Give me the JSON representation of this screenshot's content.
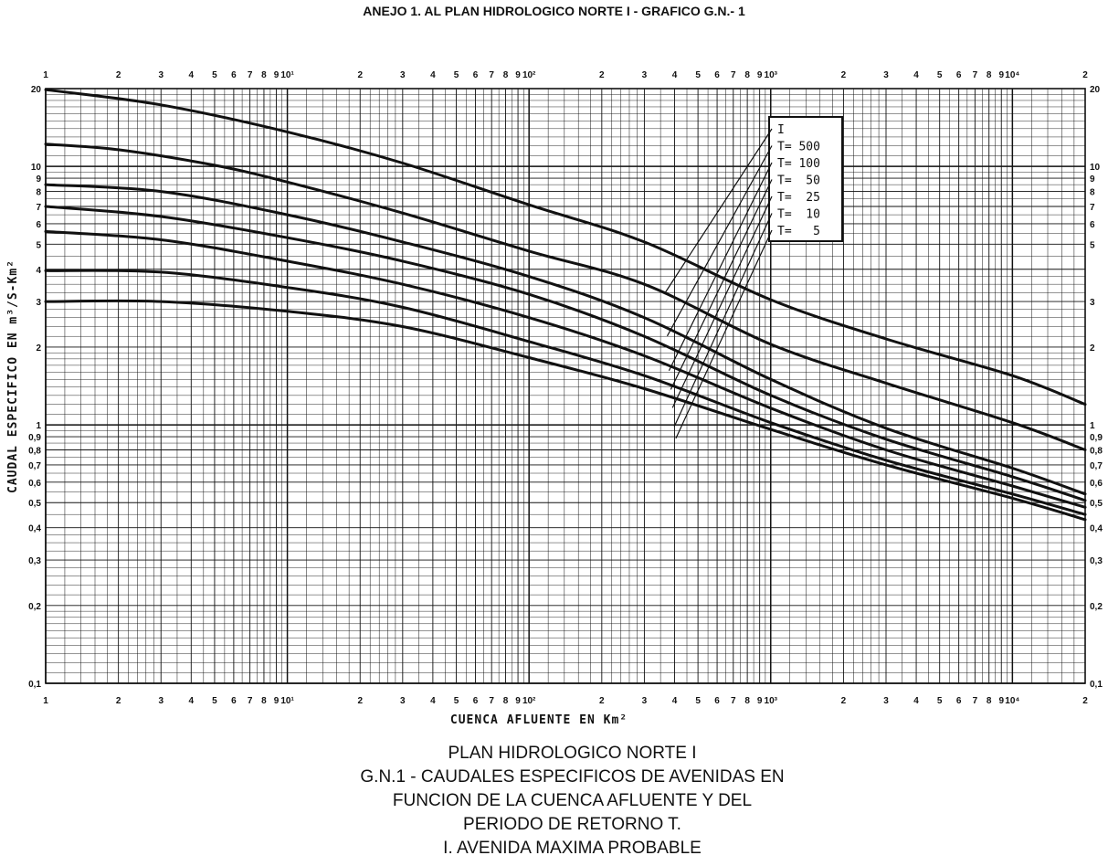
{
  "header": {
    "title": "ANEJO 1. AL PLAN HIDROLOGICO NORTE I - GRAFICO G.N.- 1"
  },
  "caption": {
    "lines": [
      "PLAN HIDROLOGICO NORTE I",
      "G.N.1 - CAUDALES ESPECIFICOS DE AVENIDAS EN",
      "FUNCION DE LA CUENCA AFLUENTE Y DEL",
      "PERIODO DE RETORNO T.",
      "I. AVENIDA MAXIMA PROBABLE"
    ]
  },
  "chart_data": {
    "type": "line",
    "xscale": "log",
    "yscale": "log",
    "xlim": [
      1,
      20000
    ],
    "ylim": [
      0.1,
      20
    ],
    "grid": true,
    "xlabel": "CUENCA  AFLUENTE  EN  Km²",
    "ylabel": "CAUDAL  ESPECIFICO  EN  m³/S-Km²",
    "x_tick_labels": [
      {
        "v": 1,
        "t": "1"
      },
      {
        "v": 2,
        "t": "2"
      },
      {
        "v": 3,
        "t": "3"
      },
      {
        "v": 4,
        "t": "4"
      },
      {
        "v": 5,
        "t": "5"
      },
      {
        "v": 6,
        "t": "6"
      },
      {
        "v": 7,
        "t": "7"
      },
      {
        "v": 8,
        "t": "8"
      },
      {
        "v": 9,
        "t": "9"
      },
      {
        "v": 10,
        "t": "10¹"
      },
      {
        "v": 20,
        "t": "2"
      },
      {
        "v": 30,
        "t": "3"
      },
      {
        "v": 40,
        "t": "4"
      },
      {
        "v": 50,
        "t": "5"
      },
      {
        "v": 60,
        "t": "6"
      },
      {
        "v": 70,
        "t": "7"
      },
      {
        "v": 80,
        "t": "8"
      },
      {
        "v": 90,
        "t": "9"
      },
      {
        "v": 100,
        "t": "10²"
      },
      {
        "v": 200,
        "t": "2"
      },
      {
        "v": 300,
        "t": "3"
      },
      {
        "v": 400,
        "t": "4"
      },
      {
        "v": 500,
        "t": "5"
      },
      {
        "v": 600,
        "t": "6"
      },
      {
        "v": 700,
        "t": "7"
      },
      {
        "v": 800,
        "t": "8"
      },
      {
        "v": 900,
        "t": "9"
      },
      {
        "v": 1000,
        "t": "10³"
      },
      {
        "v": 2000,
        "t": "2"
      },
      {
        "v": 3000,
        "t": "3"
      },
      {
        "v": 4000,
        "t": "4"
      },
      {
        "v": 5000,
        "t": "5"
      },
      {
        "v": 6000,
        "t": "6"
      },
      {
        "v": 7000,
        "t": "7"
      },
      {
        "v": 8000,
        "t": "8"
      },
      {
        "v": 9000,
        "t": "9"
      },
      {
        "v": 10000,
        "t": "10⁴"
      },
      {
        "v": 20000,
        "t": "2"
      }
    ],
    "y_tick_labels_left": [
      {
        "v": 20,
        "t": "20"
      },
      {
        "v": 10,
        "t": "10"
      },
      {
        "v": 9,
        "t": "9"
      },
      {
        "v": 8,
        "t": "8"
      },
      {
        "v": 7,
        "t": "7"
      },
      {
        "v": 6,
        "t": "6"
      },
      {
        "v": 5,
        "t": "5"
      },
      {
        "v": 4,
        "t": "4"
      },
      {
        "v": 3,
        "t": "3"
      },
      {
        "v": 2,
        "t": "2"
      },
      {
        "v": 1,
        "t": "1"
      },
      {
        "v": 0.9,
        "t": "0,9"
      },
      {
        "v": 0.8,
        "t": "0,8"
      },
      {
        "v": 0.7,
        "t": "0,7"
      },
      {
        "v": 0.6,
        "t": "0,6"
      },
      {
        "v": 0.5,
        "t": "0,5"
      },
      {
        "v": 0.4,
        "t": "0,4"
      },
      {
        "v": 0.3,
        "t": "0,3"
      },
      {
        "v": 0.2,
        "t": "0,2"
      },
      {
        "v": 0.1,
        "t": "0,1"
      }
    ],
    "y_tick_labels_right": [
      {
        "v": 20,
        "t": "20"
      },
      {
        "v": 10,
        "t": "10"
      },
      {
        "v": 9,
        "t": "9"
      },
      {
        "v": 8,
        "t": "8"
      },
      {
        "v": 7,
        "t": "7"
      },
      {
        "v": 6,
        "t": "6"
      },
      {
        "v": 5,
        "t": "5"
      },
      {
        "v": 3,
        "t": "3"
      },
      {
        "v": 2,
        "t": "2"
      },
      {
        "v": 1,
        "t": "1"
      },
      {
        "v": 0.9,
        "t": "0,9"
      },
      {
        "v": 0.8,
        "t": "0,8"
      },
      {
        "v": 0.7,
        "t": "0,7"
      },
      {
        "v": 0.6,
        "t": "0,6"
      },
      {
        "v": 0.5,
        "t": "0,5"
      },
      {
        "v": 0.4,
        "t": "0,4"
      },
      {
        "v": 0.3,
        "t": "0,3"
      },
      {
        "v": 0.2,
        "t": "0,2"
      },
      {
        "v": 0.1,
        "t": "0,1"
      }
    ],
    "series": [
      {
        "name": "I",
        "points": [
          [
            1,
            19.8
          ],
          [
            3,
            17.3
          ],
          [
            10,
            13.6
          ],
          [
            30,
            10.3
          ],
          [
            100,
            7.1
          ],
          [
            300,
            5.1
          ],
          [
            1000,
            3.05
          ],
          [
            3000,
            2.15
          ],
          [
            10000,
            1.55
          ],
          [
            20000,
            1.2
          ]
        ]
      },
      {
        "name": "T= 500",
        "points": [
          [
            1,
            12.2
          ],
          [
            2,
            11.6
          ],
          [
            5,
            10.1
          ],
          [
            10,
            8.7
          ],
          [
            30,
            6.6
          ],
          [
            100,
            4.7
          ],
          [
            300,
            3.5
          ],
          [
            1000,
            2.05
          ],
          [
            3000,
            1.45
          ],
          [
            10000,
            1.02
          ],
          [
            20000,
            0.8
          ]
        ]
      },
      {
        "name": "T= 100",
        "points": [
          [
            1,
            8.5
          ],
          [
            3,
            8.0
          ],
          [
            10,
            6.5
          ],
          [
            30,
            5.1
          ],
          [
            100,
            3.75
          ],
          [
            300,
            2.6
          ],
          [
            1000,
            1.5
          ],
          [
            3000,
            0.97
          ],
          [
            10000,
            0.68
          ],
          [
            20000,
            0.54
          ]
        ]
      },
      {
        "name": "T= 50",
        "points": [
          [
            1,
            7.0
          ],
          [
            3,
            6.4
          ],
          [
            10,
            5.3
          ],
          [
            30,
            4.3
          ],
          [
            100,
            3.2
          ],
          [
            300,
            2.2
          ],
          [
            1000,
            1.3
          ],
          [
            3000,
            0.88
          ],
          [
            10000,
            0.63
          ],
          [
            20000,
            0.51
          ]
        ]
      },
      {
        "name": "T= 25",
        "points": [
          [
            1,
            5.6
          ],
          [
            3,
            5.2
          ],
          [
            10,
            4.3
          ],
          [
            30,
            3.5
          ],
          [
            100,
            2.6
          ],
          [
            300,
            1.85
          ],
          [
            1000,
            1.16
          ],
          [
            3000,
            0.8
          ],
          [
            10000,
            0.58
          ],
          [
            20000,
            0.48
          ]
        ]
      },
      {
        "name": "T= 10",
        "points": [
          [
            1,
            3.95
          ],
          [
            3,
            3.9
          ],
          [
            10,
            3.4
          ],
          [
            30,
            2.85
          ],
          [
            100,
            2.1
          ],
          [
            300,
            1.55
          ],
          [
            1000,
            1.02
          ],
          [
            3000,
            0.73
          ],
          [
            10000,
            0.54
          ],
          [
            20000,
            0.45
          ]
        ]
      },
      {
        "name": "T= 5",
        "points": [
          [
            1,
            3.0
          ],
          [
            3,
            3.0
          ],
          [
            10,
            2.75
          ],
          [
            30,
            2.4
          ],
          [
            100,
            1.82
          ],
          [
            300,
            1.38
          ],
          [
            1000,
            0.96
          ],
          [
            3000,
            0.7
          ],
          [
            10000,
            0.52
          ],
          [
            20000,
            0.43
          ]
        ]
      }
    ],
    "legend": {
      "placement": "inside top-right",
      "entries": [
        "I",
        "T= 500",
        "T= 100",
        "T=  50",
        "T=  25",
        "T=  10",
        "T=   5"
      ]
    }
  }
}
